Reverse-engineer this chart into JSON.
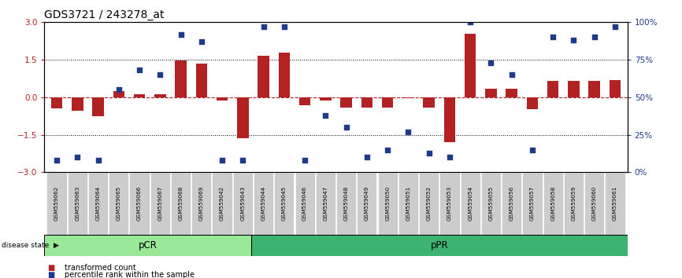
{
  "title": "GDS3721 / 243278_at",
  "samples": [
    "GSM559062",
    "GSM559063",
    "GSM559064",
    "GSM559065",
    "GSM559066",
    "GSM559067",
    "GSM559068",
    "GSM559069",
    "GSM559042",
    "GSM559043",
    "GSM559044",
    "GSM559045",
    "GSM559046",
    "GSM559047",
    "GSM559048",
    "GSM559049",
    "GSM559050",
    "GSM559051",
    "GSM559052",
    "GSM559053",
    "GSM559054",
    "GSM559055",
    "GSM559056",
    "GSM559057",
    "GSM559058",
    "GSM559059",
    "GSM559060",
    "GSM559061"
  ],
  "transformed_count": [
    -0.45,
    -0.55,
    -0.75,
    0.25,
    0.12,
    0.12,
    1.48,
    1.35,
    -0.12,
    -1.65,
    1.65,
    1.78,
    -0.32,
    -0.12,
    -0.42,
    -0.42,
    -0.42,
    -0.05,
    -0.42,
    -1.78,
    2.55,
    0.35,
    0.35,
    -0.48,
    0.65,
    0.65,
    0.65,
    0.7
  ],
  "percentile_rank": [
    8,
    10,
    8,
    55,
    68,
    65,
    92,
    87,
    8,
    8,
    97,
    97,
    8,
    38,
    30,
    10,
    15,
    27,
    13,
    10,
    100,
    73,
    65,
    15,
    90,
    88,
    90,
    97
  ],
  "n_pCR": 10,
  "n_pPR": 18,
  "bar_color": "#b22222",
  "dot_color": "#1e3a8a",
  "pCR_color": "#98e898",
  "pPR_color": "#3cb371",
  "pCR_label": "pCR",
  "pPR_label": "pPR",
  "left_ylim": [
    -3,
    3
  ],
  "right_ylim": [
    0,
    100
  ],
  "left_yticks": [
    -3,
    -1.5,
    0,
    1.5,
    3
  ],
  "right_yticks": [
    0,
    25,
    50,
    75,
    100
  ],
  "right_yticklabels": [
    "0%",
    "25%",
    "50%",
    "75%",
    "100%"
  ],
  "hline_dotted": [
    1.5,
    -1.5
  ],
  "title_fontsize": 10,
  "legend_bar_label": "transformed count",
  "legend_dot_label": "percentile rank within the sample",
  "disease_state_label": "disease state"
}
